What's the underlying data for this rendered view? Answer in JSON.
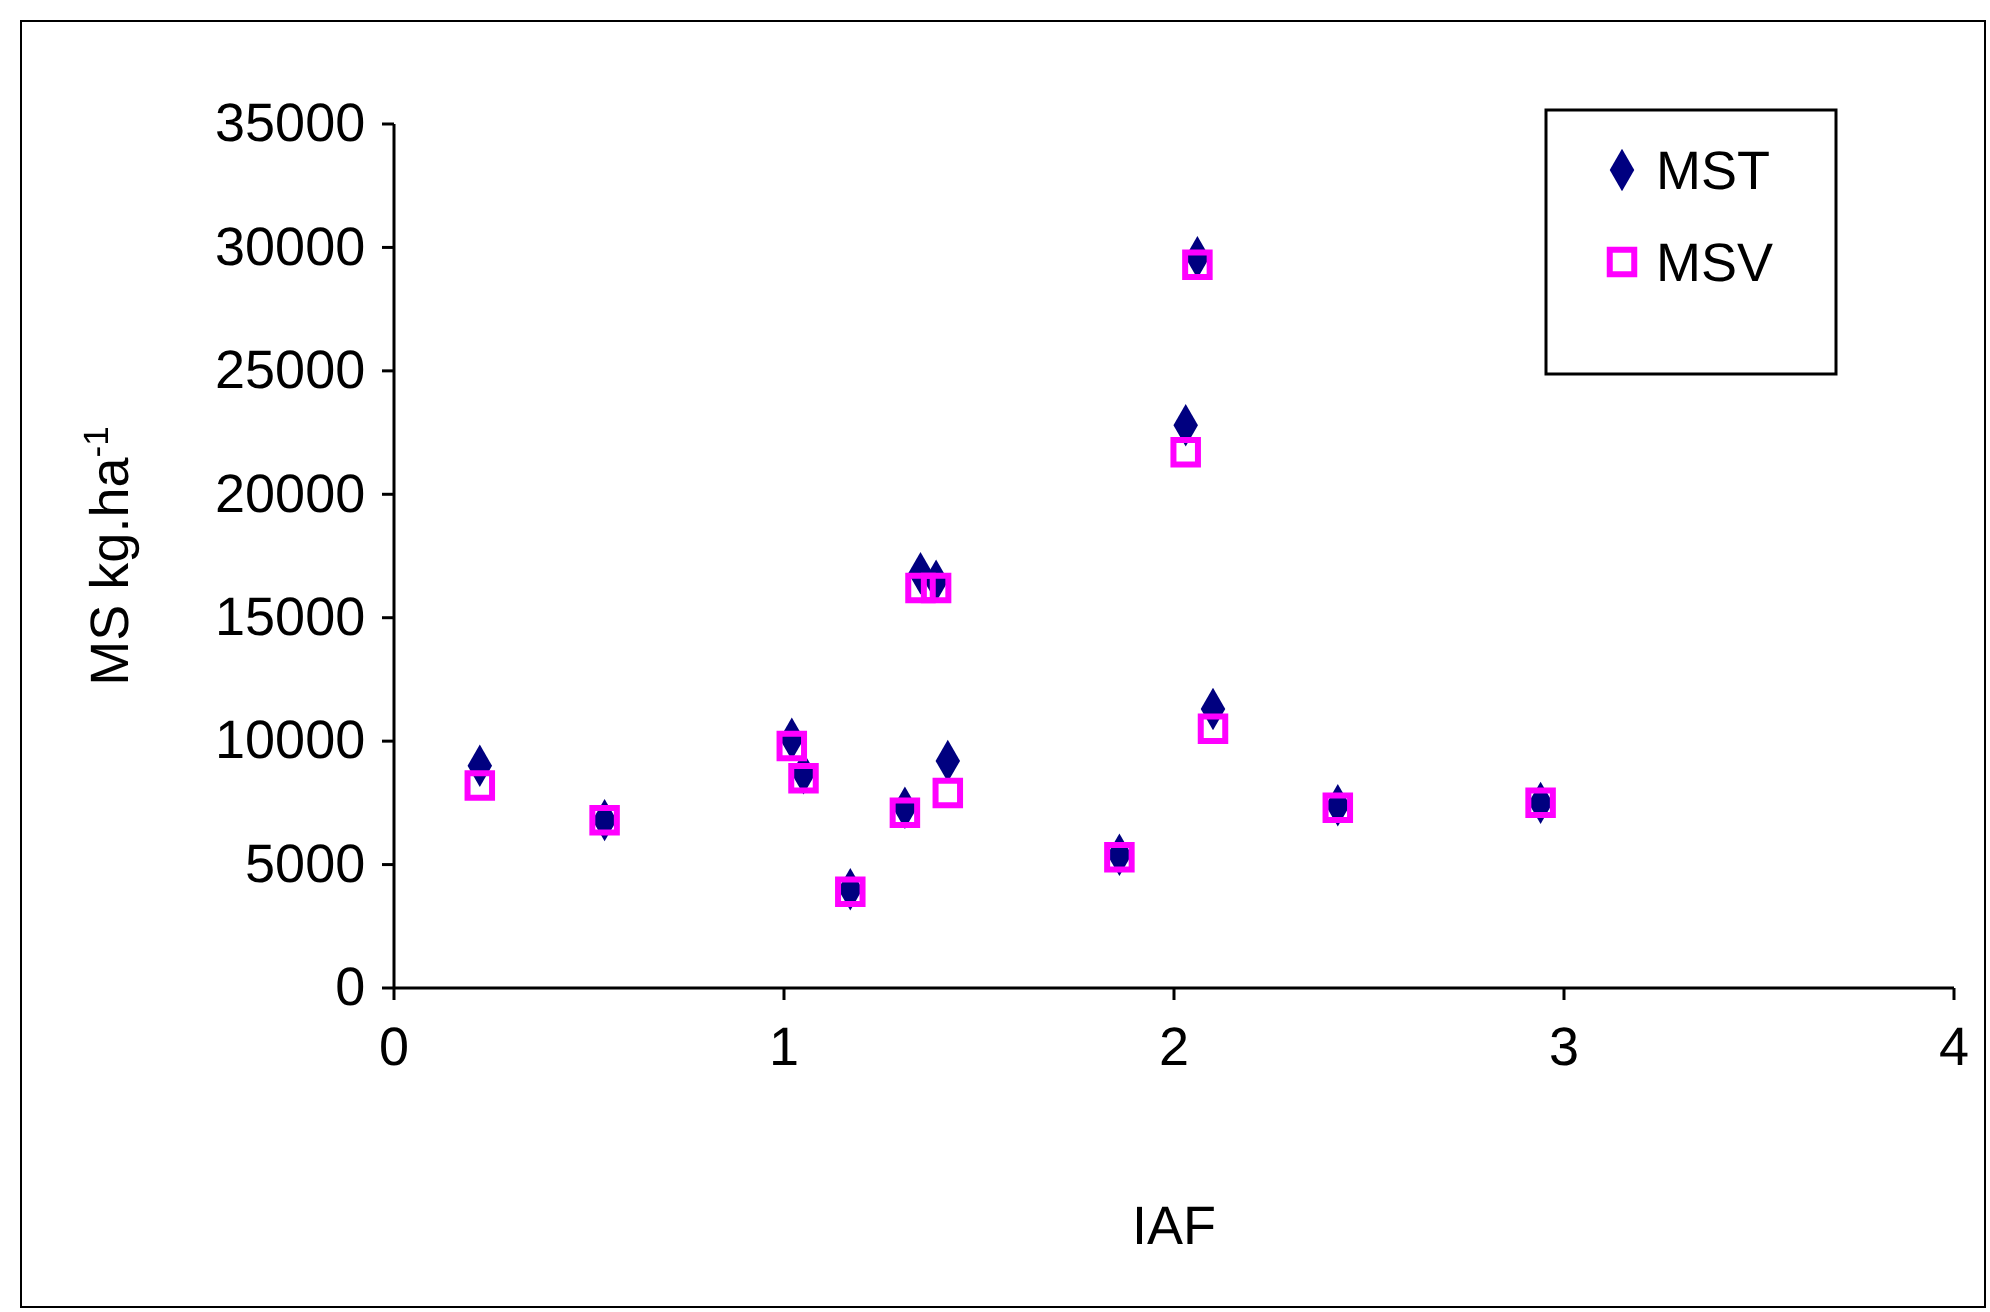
{
  "chart_data": {
    "type": "scatter",
    "xlabel": "IAF",
    "ylabel": "MS kg.ha$^{-1}$",
    "xlim": [
      0,
      4
    ],
    "xticks": [
      0,
      1,
      2,
      3,
      4
    ],
    "ylim": [
      0,
      35000
    ],
    "yticks": [
      0,
      5000,
      10000,
      15000,
      20000,
      25000,
      30000,
      35000
    ],
    "grid": false,
    "legend": "top right",
    "series": [
      {
        "name": "MST",
        "color": "#000080",
        "marker": "diamond",
        "x": [
          0.22,
          0.54,
          1.02,
          1.05,
          1.17,
          1.31,
          1.35,
          1.39,
          1.42,
          1.86,
          2.03,
          2.06,
          2.1,
          2.42,
          2.94
        ],
        "values": [
          9000,
          6800,
          10100,
          8700,
          4000,
          7300,
          16800,
          16500,
          9200,
          5400,
          22800,
          29600,
          11300,
          7400,
          7500
        ]
      },
      {
        "name": "MSV",
        "color": "#ff00ff",
        "marker": "square",
        "x": [
          0.22,
          0.54,
          1.02,
          1.05,
          1.17,
          1.31,
          1.35,
          1.39,
          1.42,
          1.86,
          2.03,
          2.06,
          2.1,
          2.42,
          2.94
        ],
        "values": [
          8200,
          6800,
          9800,
          8500,
          3900,
          7100,
          16200,
          16200,
          7900,
          5300,
          21700,
          29300,
          10500,
          7300,
          7500
        ]
      }
    ]
  }
}
